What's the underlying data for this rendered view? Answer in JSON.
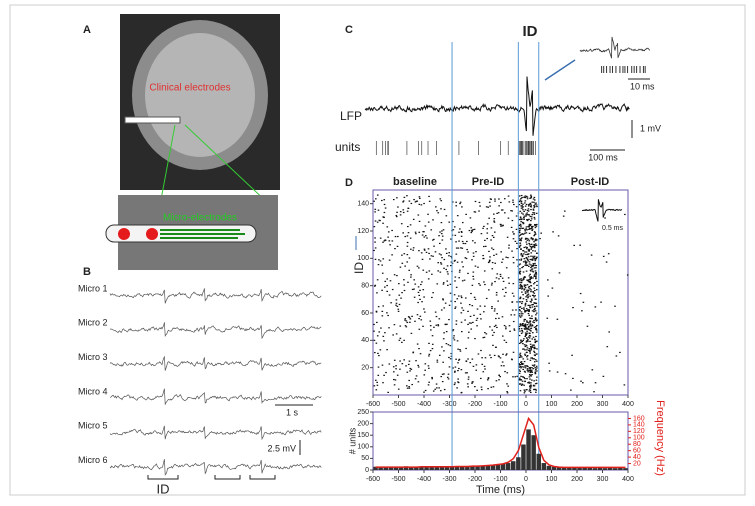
{
  "panels": {
    "a": "A",
    "b": "B",
    "c": "C",
    "d": "D"
  },
  "panel_a": {
    "clinical_label": "Clinical electrodes",
    "micro_label": "Micro-electrodes"
  },
  "panel_b": {
    "channels": [
      "Micro 1",
      "Micro 2",
      "Micro 3",
      "Micro 4",
      "Micro 5",
      "Micro 6"
    ],
    "time_scale": "1 s",
    "voltage_scale": "2.5 mV",
    "event_label": "ID"
  },
  "panel_c": {
    "title": "ID",
    "lfp_label": "LFP",
    "units_label": "units",
    "voltage_scale": "1 mV",
    "time_scale": "100 ms",
    "inset_scale": "10 ms"
  },
  "chart_data": [
    {
      "type": "raster",
      "sections": [
        "baseline",
        "Pre-ID",
        "Post-ID"
      ],
      "ylabel": "ID",
      "inset_scale": "0.5 ms",
      "xlim": [
        -600,
        400
      ],
      "xticks": [
        -600,
        -500,
        -400,
        -300,
        -200,
        -100,
        0,
        100,
        200,
        300,
        400
      ],
      "ylim": [
        0,
        150
      ],
      "yticks": [
        20,
        40,
        60,
        80,
        100,
        120,
        140
      ],
      "event_lines": [
        -290,
        -30,
        50
      ],
      "line_color": "#5b9bd5"
    },
    {
      "type": "histogram",
      "xlabel": "Time (ms)",
      "ylabel": "# units",
      "y2label": "Frequency (Hz)",
      "bins": [
        -600,
        -580,
        -560,
        -540,
        -520,
        -500,
        -480,
        -460,
        -440,
        -420,
        -400,
        -380,
        -360,
        -340,
        -320,
        -300,
        -280,
        -260,
        -240,
        -220,
        -200,
        -180,
        -160,
        -140,
        -120,
        -100,
        -80,
        -60,
        -40,
        -20,
        0,
        20,
        40,
        60,
        80,
        100,
        120,
        140,
        160,
        180,
        200,
        220,
        240,
        260,
        280,
        300,
        320,
        340,
        360,
        380,
        400
      ],
      "series": [
        {
          "color": "#333333",
          "values": [
            14,
            12,
            15,
            13,
            14,
            12,
            16,
            13,
            15,
            14,
            13,
            15,
            14,
            16,
            15,
            14,
            17,
            15,
            16,
            18,
            17,
            19,
            20,
            22,
            24,
            26,
            30,
            38,
            55,
            110,
            175,
            150,
            70,
            30,
            18,
            14,
            12,
            11,
            10,
            10,
            9,
            10,
            9,
            8,
            9,
            8,
            9,
            8,
            9,
            8
          ]
        },
        {
          "color": "#e0201b",
          "axis": "y2",
          "values": [
            9,
            9,
            9,
            9,
            9,
            9,
            9,
            9,
            9,
            10,
            10,
            10,
            10,
            10,
            10,
            10,
            11,
            11,
            11,
            12,
            12,
            13,
            14,
            15,
            17,
            19,
            24,
            35,
            60,
            110,
            160,
            140,
            70,
            30,
            16,
            11,
            9,
            8,
            8,
            8,
            8,
            8,
            8,
            8,
            8,
            8,
            8,
            8,
            8,
            8
          ]
        }
      ],
      "xlim": [
        -600,
        400
      ],
      "xticks": [
        -600,
        -500,
        -400,
        -300,
        -200,
        -100,
        0,
        100,
        200,
        300,
        400
      ],
      "ylim": [
        0,
        250
      ],
      "yticks": [
        0,
        50,
        100,
        150,
        200,
        250
      ],
      "y2lim": [
        0,
        180
      ],
      "y2ticks": [
        20,
        40,
        60,
        80,
        100,
        120,
        140,
        160
      ]
    }
  ]
}
